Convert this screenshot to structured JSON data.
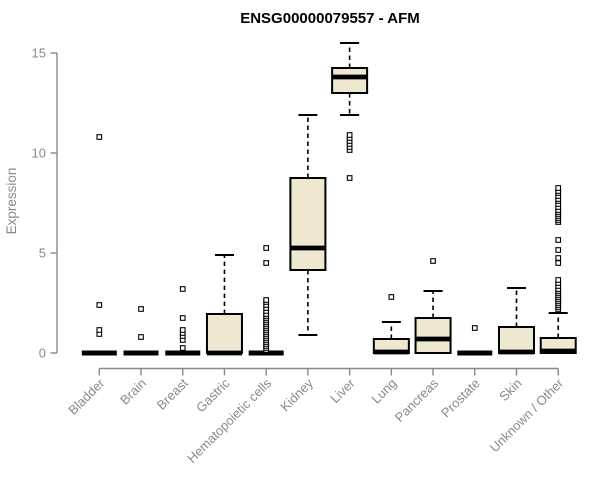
{
  "title": "ENSG00000079557 - AFM",
  "colors": {
    "background": "#ffffff",
    "box_fill": "#EDE8CF",
    "box_stroke": "#000000",
    "median": "#000000",
    "whisker": "#000000",
    "outlier_stroke": "#000000",
    "outlier_fill": "#ffffff",
    "axis_line": "#888888",
    "axis_text": "#8a8a8a",
    "title_text": "#000000"
  },
  "chart_data": {
    "type": "boxplot",
    "title": "ENSG00000079557 - AFM",
    "xlabel": "",
    "ylabel": "Expression",
    "ylim": [
      0,
      15.5
    ],
    "yticks": [
      0,
      5,
      10,
      15
    ],
    "grid": false,
    "legend": "none",
    "categories": [
      "Bladder",
      "Brain",
      "Breast",
      "Gastric",
      "Hematopoietic cells",
      "Kidney",
      "Liver",
      "Lung",
      "Pancreas",
      "Prostate",
      "Skin",
      "Unknown / Other"
    ],
    "boxes": [
      {
        "category": "Bladder",
        "median": 0,
        "q1": 0,
        "q3": 0,
        "whisker_low": 0,
        "whisker_high": 0,
        "outliers": [
          0.95,
          1.15,
          2.4,
          10.8
        ]
      },
      {
        "category": "Brain",
        "median": 0,
        "q1": 0,
        "q3": 0,
        "whisker_low": 0,
        "whisker_high": 0,
        "outliers": [
          0.8,
          2.2
        ]
      },
      {
        "category": "Breast",
        "median": 0,
        "q1": 0,
        "q3": 0,
        "whisker_low": 0,
        "whisker_high": 0,
        "outliers": [
          0.25,
          0.65,
          0.85,
          1.0,
          1.15,
          1.75,
          3.2
        ]
      },
      {
        "category": "Gastric",
        "median": 0,
        "q1": 0,
        "q3": 1.95,
        "whisker_low": 0,
        "whisker_high": 4.9,
        "outliers": []
      },
      {
        "category": "Hematopoietic cells",
        "median": 0,
        "q1": 0,
        "q3": 0,
        "whisker_low": 0,
        "whisker_high": 0,
        "outliers": [
          0.15,
          0.25,
          0.35,
          0.45,
          0.55,
          0.65,
          0.75,
          0.85,
          0.95,
          1.05,
          1.15,
          1.25,
          1.35,
          1.45,
          1.55,
          1.65,
          1.75,
          1.85,
          1.95,
          2.1,
          2.25,
          2.4,
          2.55,
          2.65,
          4.5,
          5.25
        ]
      },
      {
        "category": "Kidney",
        "median": 5.25,
        "q1": 4.15,
        "q3": 8.75,
        "whisker_low": 0.9,
        "whisker_high": 11.9,
        "outliers": []
      },
      {
        "category": "Liver",
        "median": 13.8,
        "q1": 13.0,
        "q3": 14.25,
        "whisker_low": 11.9,
        "whisker_high": 15.5,
        "outliers": [
          8.75,
          10.15,
          10.3,
          10.45,
          10.6,
          10.75,
          10.9
        ]
      },
      {
        "category": "Lung",
        "median": 0.05,
        "q1": 0,
        "q3": 0.7,
        "whisker_low": 0,
        "whisker_high": 1.55,
        "outliers": [
          2.8
        ]
      },
      {
        "category": "Pancreas",
        "median": 0.7,
        "q1": 0,
        "q3": 1.75,
        "whisker_low": 0,
        "whisker_high": 3.1,
        "outliers": [
          4.6
        ]
      },
      {
        "category": "Prostate",
        "median": 0,
        "q1": 0,
        "q3": 0,
        "whisker_low": 0,
        "whisker_high": 0,
        "outliers": [
          1.25
        ]
      },
      {
        "category": "Skin",
        "median": 0.05,
        "q1": 0,
        "q3": 1.3,
        "whisker_low": 0,
        "whisker_high": 3.25,
        "outliers": []
      },
      {
        "category": "Unknown / Other",
        "median": 0.1,
        "q1": 0,
        "q3": 0.75,
        "whisker_low": 0,
        "whisker_high": 2.0,
        "outliers": [
          2.2,
          2.3,
          2.4,
          2.5,
          2.6,
          2.7,
          2.8,
          2.9,
          3.0,
          3.1,
          3.2,
          3.35,
          3.5,
          3.65,
          4.5,
          4.75,
          5.15,
          5.65,
          6.55,
          6.65,
          6.75,
          6.85,
          6.95,
          7.05,
          7.15,
          7.3,
          7.45,
          7.6,
          7.7,
          7.85,
          8.0,
          8.1,
          8.25
        ]
      }
    ]
  }
}
